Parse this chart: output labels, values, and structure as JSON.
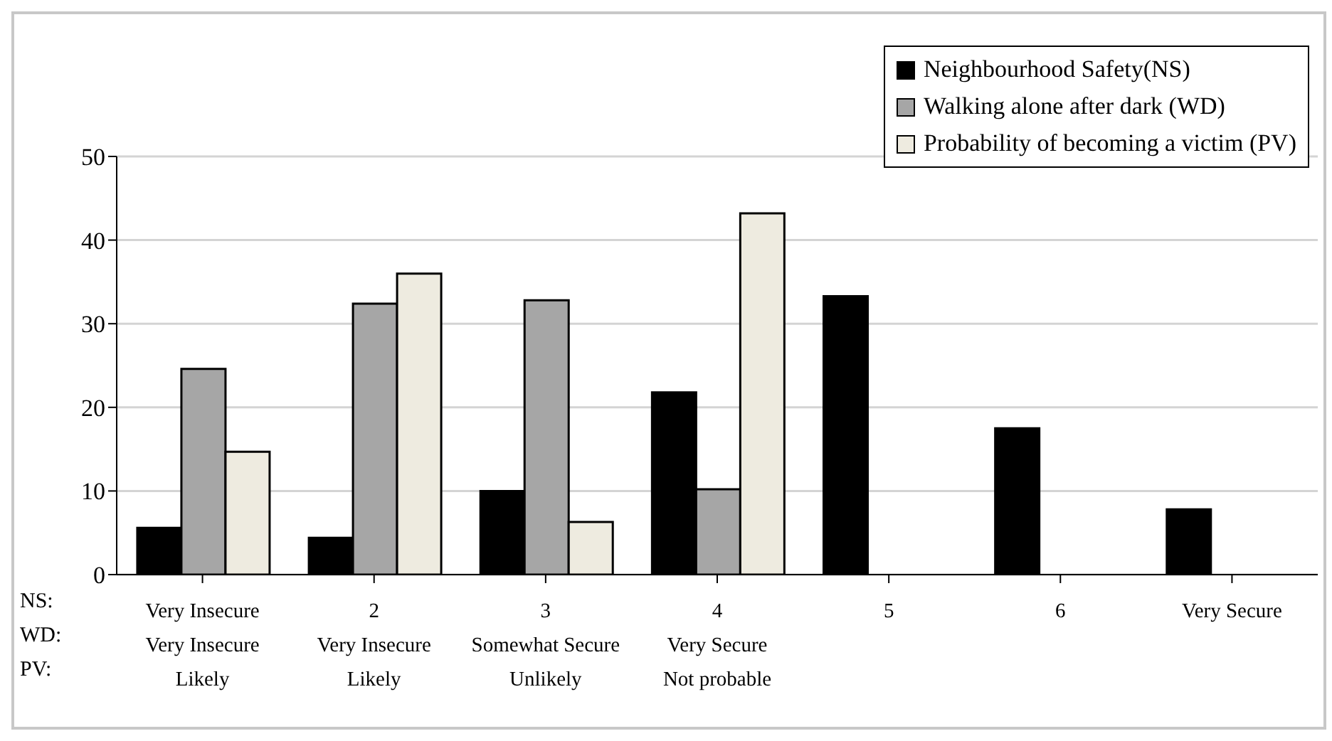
{
  "chart_data": {
    "type": "bar",
    "categories": [
      "Very Insecure\nVery Insecure\nLikely",
      "2\nVery Insecure\nLikely",
      "3\nSomewhat Secure\nUnlikely",
      "4\nVery Secure\nNot probable",
      "5",
      "6",
      "Very Secure"
    ],
    "series": [
      {
        "name": "Neighbourhood Safety(NS)",
        "color": "#000000",
        "values": [
          5.6,
          4.4,
          10.0,
          21.8,
          33.3,
          17.5,
          7.8
        ]
      },
      {
        "name": "Walking alone after dark (WD)",
        "color": "#a6a6a6",
        "values": [
          24.6,
          32.4,
          32.8,
          10.2,
          null,
          null,
          null
        ]
      },
      {
        "name": "Probability of becoming a victim (PV)",
        "color": "#eeebe0",
        "values": [
          14.7,
          36.0,
          6.3,
          43.2,
          null,
          null,
          null
        ]
      }
    ],
    "annotations": [
      "NS:",
      "WD:",
      "PV:"
    ],
    "ylim": [
      0,
      50
    ],
    "yticks": [
      0,
      10,
      20,
      30,
      40,
      50
    ],
    "grid": "y",
    "legend": "top right"
  }
}
